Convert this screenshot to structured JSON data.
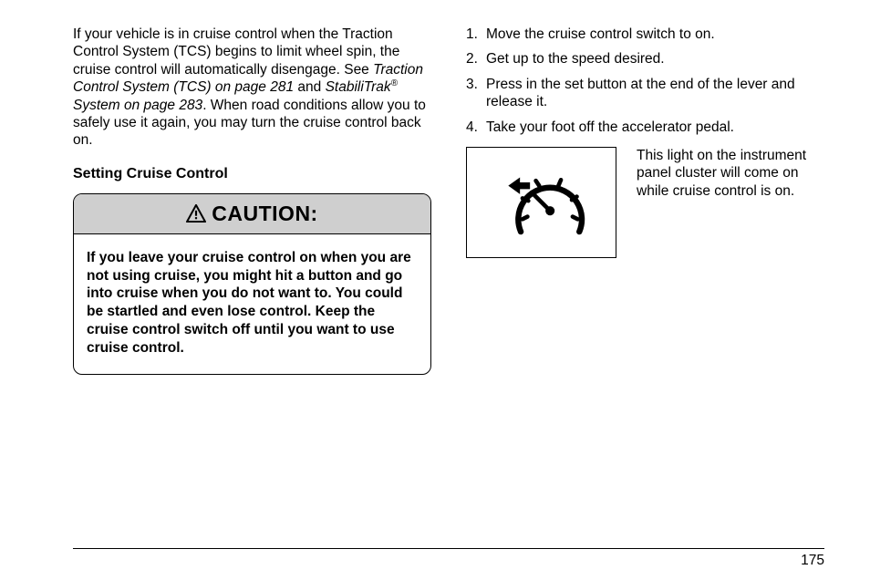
{
  "para1_runs": [
    {
      "t": "If your vehicle is in cruise control when the Traction Control System (TCS) begins to limit wheel spin, the cruise control will automatically disengage. See ",
      "cls": ""
    },
    {
      "t": "Traction Control System (TCS) on page 281",
      "cls": "italic"
    },
    {
      "t": " and ",
      "cls": ""
    },
    {
      "t": "StabiliTrak",
      "cls": "italic"
    },
    {
      "t": "®",
      "cls": "sup"
    },
    {
      "t": " System on page 283",
      "cls": "italic"
    },
    {
      "t": ". When road conditions allow you to safely use it again, you may turn the cruise control back on.",
      "cls": ""
    }
  ],
  "subhead": "Setting Cruise Control",
  "caution_label": "CAUTION:",
  "caution_body": "If you leave your cruise control on when you are not using cruise, you might hit a button and go into cruise when you do not want to. You could be startled and even lose control. Keep the cruise control switch off until you want to use cruise control.",
  "steps": [
    "Move the cruise control switch to on.",
    "Get up to the speed desired.",
    "Press in the set button at the end of the lever and release it.",
    "Take your foot off the accelerator pedal."
  ],
  "light_text": "This light on the instrument panel cluster will come on while cruise control is on.",
  "page_number": "175",
  "colors": {
    "caution_header_bg": "#CFCFCF",
    "text": "#000000",
    "bg": "#ffffff"
  }
}
